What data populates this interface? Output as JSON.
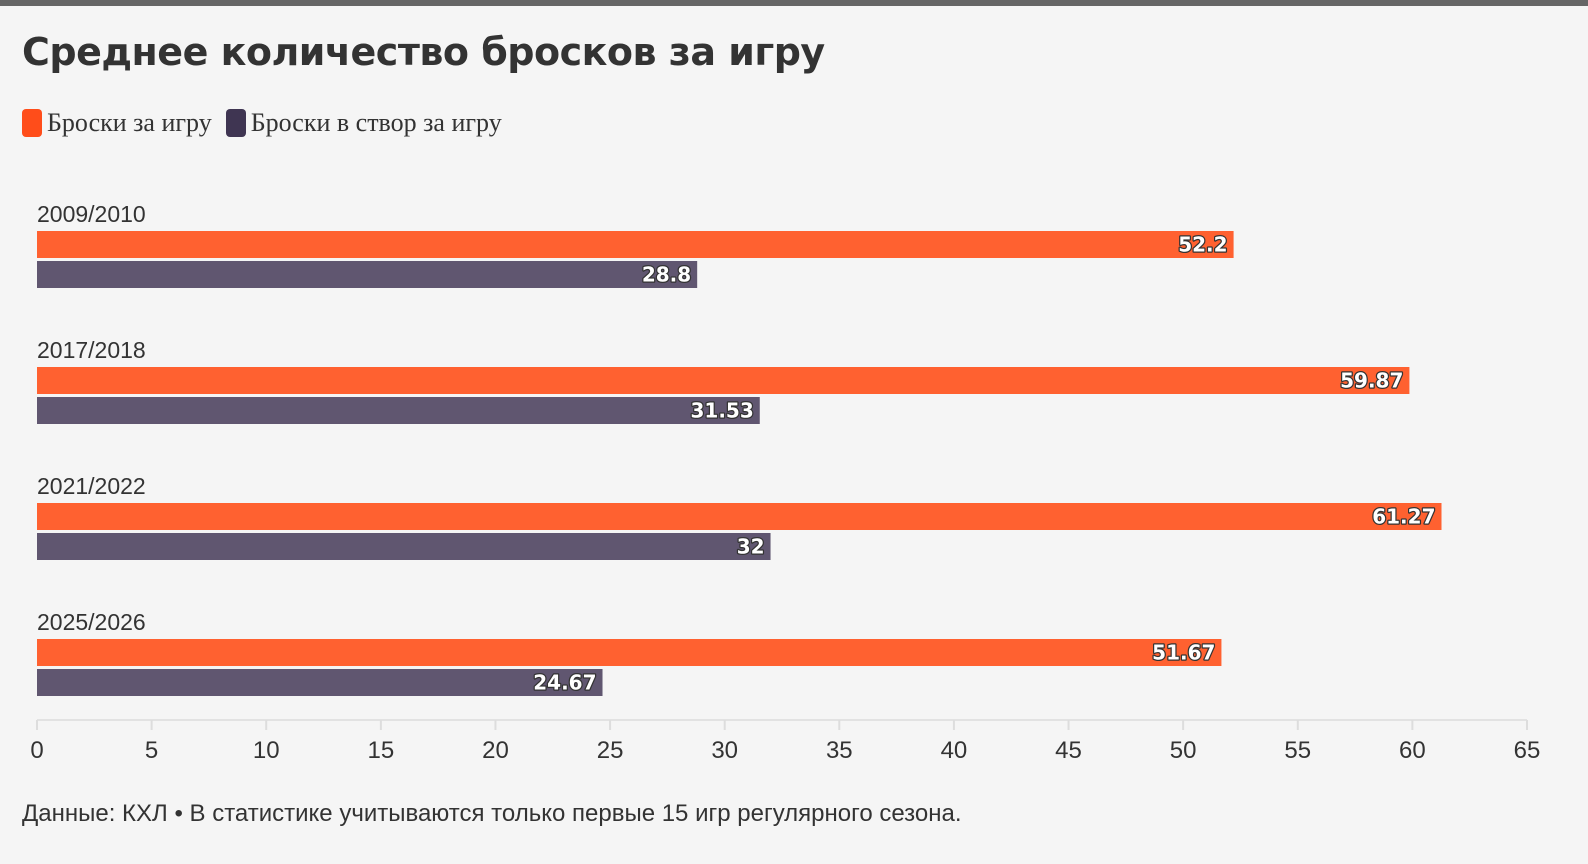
{
  "header": {
    "title": "Среднее количество бросков за игру"
  },
  "legend": [
    {
      "label": "Броски за игру",
      "color": "#ff6130"
    },
    {
      "label": "Броски в створ за игру",
      "color": "#3f3552"
    }
  ],
  "chart_data": {
    "type": "bar",
    "orientation": "horizontal",
    "categories": [
      "2009/2010",
      "2017/2018",
      "2021/2022",
      "2025/2026"
    ],
    "series": [
      {
        "name": "Броски за игру",
        "values": [
          52.2,
          59.87,
          61.27,
          51.67
        ],
        "labels": [
          "52.2",
          "59.87",
          "61.27",
          "51.67"
        ],
        "color": "#ff6130"
      },
      {
        "name": "Броски в створ за игру",
        "values": [
          28.8,
          31.53,
          32,
          24.67
        ],
        "labels": [
          "28.8",
          "31.53",
          "32",
          "24.67"
        ],
        "color": "#605670"
      }
    ],
    "xlim": [
      0,
      65
    ],
    "xticks": [
      0,
      5,
      10,
      15,
      20,
      25,
      30,
      35,
      40,
      45,
      50,
      55,
      60,
      65
    ],
    "legend_position": "top-left",
    "grid": false
  },
  "footnote": "Данные: КХЛ • В статистике учитываются только первые 15 игр регулярного сезона."
}
